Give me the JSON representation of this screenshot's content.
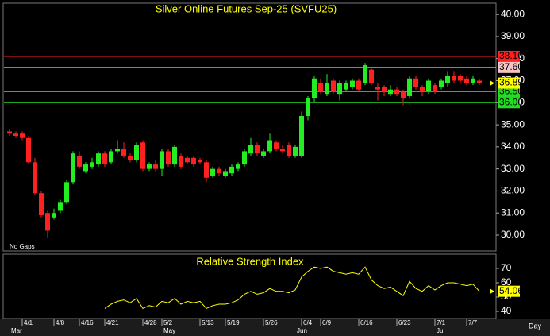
{
  "chart_data": [
    {
      "type": "candlestick",
      "title": "Silver Online Futures Sep-25 (SVFU25)",
      "annotation": "No Gaps",
      "period": "Day",
      "categories": [
        null,
        null,
        "4/1",
        null,
        null,
        null,
        null,
        "4/8",
        null,
        null,
        null,
        "4/16",
        null,
        null,
        null,
        "4/21",
        null,
        null,
        null,
        null,
        null,
        "4/28",
        null,
        null,
        "5/2",
        null,
        null,
        null,
        null,
        null,
        "5/13",
        null,
        null,
        null,
        "5/19",
        null,
        null,
        null,
        null,
        null,
        "5/26",
        null,
        null,
        null,
        null,
        null,
        "6/4",
        null,
        null,
        "6/9",
        null,
        null,
        null,
        null,
        null,
        "6/16",
        null,
        null,
        null,
        null,
        null,
        "6/23",
        null,
        null,
        null,
        null,
        null,
        "7/1",
        null,
        null,
        null,
        null,
        "7/7",
        null,
        null
      ],
      "months": [
        "Mar",
        null,
        null,
        null,
        null,
        null,
        null,
        null,
        null,
        null,
        null,
        null,
        null,
        null,
        null,
        null,
        null,
        null,
        null,
        null,
        null,
        null,
        null,
        null,
        "May",
        null,
        null,
        null,
        null,
        null,
        null,
        null,
        null,
        null,
        null,
        null,
        null,
        null,
        null,
        null,
        null,
        null,
        null,
        null,
        null,
        "Jun",
        null,
        null,
        null,
        null,
        null,
        null,
        null,
        null,
        null,
        null,
        null,
        null,
        null,
        null,
        null,
        null,
        null,
        null,
        null,
        null,
        null,
        "Jul",
        null,
        null,
        null,
        null,
        null,
        null,
        null
      ],
      "open": [
        34.7,
        34.6,
        34.6,
        34.4,
        33.3,
        31.9,
        31.0,
        30.8,
        31.1,
        31.5,
        32.4,
        33.6,
        32.9,
        33.1,
        33.2,
        33.7,
        33.3,
        33.8,
        33.9,
        33.6,
        33.4,
        34.2,
        33.0,
        33.2,
        33.0,
        33.8,
        33.2,
        33.6,
        33.5,
        33.5,
        33.4,
        33.3,
        32.7,
        33.0,
        32.7,
        32.8,
        33.0,
        33.2,
        33.7,
        34.1,
        33.6,
        33.8,
        34.2,
        33.9,
        34.1,
        33.6,
        33.6,
        35.4,
        36.2,
        36.9,
        36.4,
        37.0,
        36.4,
        36.6,
        36.7,
        37.0,
        36.9,
        37.5,
        36.7,
        36.7,
        36.4,
        36.6,
        36.5,
        36.3,
        37.1,
        36.7,
        36.5,
        36.8,
        36.7,
        36.9,
        37.2,
        37.2,
        37.1,
        36.9,
        37.0
      ],
      "high": [
        34.8,
        34.7,
        34.7,
        34.5,
        33.5,
        32.0,
        31.1,
        31.2,
        31.6,
        32.5,
        33.8,
        33.8,
        33.3,
        33.5,
        33.8,
        33.8,
        33.9,
        34.3,
        34.2,
        33.7,
        34.2,
        34.3,
        33.3,
        33.4,
        33.9,
        33.9,
        34.1,
        33.7,
        33.6,
        33.6,
        33.5,
        33.4,
        33.1,
        33.1,
        33.0,
        33.2,
        33.3,
        33.9,
        34.4,
        34.2,
        33.9,
        34.6,
        34.3,
        34.1,
        34.2,
        34.1,
        35.6,
        36.3,
        37.2,
        37.1,
        37.3,
        37.1,
        37.0,
        37.0,
        37.1,
        37.1,
        37.8,
        37.6,
        36.9,
        36.8,
        36.8,
        36.7,
        36.6,
        37.2,
        37.2,
        36.8,
        37.1,
        36.9,
        37.1,
        37.4,
        37.4,
        37.3,
        37.2,
        37.2,
        37.1
      ],
      "low": [
        34.5,
        34.4,
        34.3,
        33.2,
        31.8,
        30.8,
        29.9,
        30.7,
        31.0,
        31.4,
        32.3,
        33.0,
        32.8,
        33.0,
        33.1,
        33.1,
        33.2,
        33.7,
        33.5,
        33.3,
        33.3,
        32.9,
        32.9,
        32.9,
        32.7,
        33.1,
        33.1,
        33.0,
        33.2,
        33.1,
        33.2,
        32.4,
        32.6,
        32.7,
        32.6,
        32.7,
        32.9,
        33.1,
        33.6,
        33.6,
        33.5,
        33.7,
        33.8,
        33.7,
        33.5,
        33.5,
        33.5,
        35.2,
        36.0,
        36.4,
        36.3,
        36.4,
        36.1,
        36.5,
        36.6,
        36.5,
        36.8,
        36.8,
        36.1,
        36.3,
        36.3,
        36.3,
        35.9,
        36.2,
        36.6,
        36.3,
        36.4,
        36.4,
        36.6,
        36.7,
        36.9,
        36.9,
        36.8,
        36.8,
        36.8
      ],
      "close": [
        34.6,
        34.5,
        34.4,
        33.3,
        31.9,
        30.9,
        30.2,
        31.0,
        31.5,
        32.4,
        33.7,
        33.1,
        33.2,
        33.3,
        33.7,
        33.2,
        33.8,
        33.9,
        33.6,
        33.4,
        34.1,
        33.0,
        33.2,
        33.0,
        33.8,
        33.2,
        34.0,
        33.1,
        33.3,
        33.2,
        33.3,
        32.6,
        33.0,
        32.8,
        32.9,
        33.1,
        33.2,
        33.8,
        34.1,
        33.7,
        33.8,
        34.3,
        33.9,
        33.8,
        33.6,
        34.0,
        35.4,
        36.2,
        37.1,
        36.5,
        36.9,
        36.5,
        36.9,
        36.9,
        37.0,
        36.6,
        37.7,
        36.9,
        36.6,
        36.5,
        36.6,
        36.4,
        36.2,
        37.1,
        36.7,
        36.5,
        37.0,
        36.5,
        37.0,
        37.2,
        37.0,
        37.0,
        36.9,
        37.1,
        36.89
      ],
      "up_color": "#22ee22",
      "down_color": "#ff2020",
      "levels": [
        {
          "value": 38.1,
          "label": "38.10",
          "color": "#ff2020"
        },
        {
          "value": 37.6,
          "label": "37.60",
          "color": "#f4c4c4"
        },
        {
          "value": 36.5,
          "label": "36.50",
          "color": "#22dd22"
        },
        {
          "value": 36.0,
          "label": "36.00",
          "color": "#22dd22"
        }
      ],
      "ylim": [
        29.28,
        40.51
      ],
      "yticks": [
        {
          "value": 30,
          "label": "30.00"
        },
        {
          "value": 31,
          "label": "31.00"
        },
        {
          "value": 32,
          "label": "32.00"
        },
        {
          "value": 33,
          "label": "33.00"
        },
        {
          "value": 34,
          "label": "34.00"
        },
        {
          "value": 35,
          "label": "35.00"
        },
        {
          "value": 36,
          "label": "36.00"
        },
        {
          "value": 37,
          "label": "37.00"
        },
        {
          "value": 38,
          "label": "38.00"
        },
        {
          "value": 39,
          "label": "39.00"
        },
        {
          "value": 40,
          "label": "40.00"
        }
      ]
    },
    {
      "type": "line",
      "title": "Relative Strength Index",
      "color": "#ffff00",
      "values": [
        null,
        null,
        null,
        null,
        null,
        null,
        null,
        null,
        null,
        null,
        null,
        null,
        null,
        null,
        null,
        42,
        45,
        47,
        48,
        46,
        49,
        42,
        44,
        43,
        47,
        46,
        49,
        45,
        47,
        46,
        47,
        42,
        44,
        45,
        45,
        46,
        48,
        52,
        54,
        52,
        53,
        56,
        54,
        54,
        53,
        55,
        64,
        68,
        71,
        70,
        71,
        68,
        67,
        66,
        67,
        66,
        71,
        62,
        58,
        56,
        57,
        54,
        51,
        61,
        56,
        54,
        58,
        55,
        58,
        60,
        60,
        59,
        58,
        59,
        54.06
      ],
      "ylim": [
        35,
        80
      ],
      "yticks": [
        40,
        50,
        60,
        70
      ]
    }
  ]
}
